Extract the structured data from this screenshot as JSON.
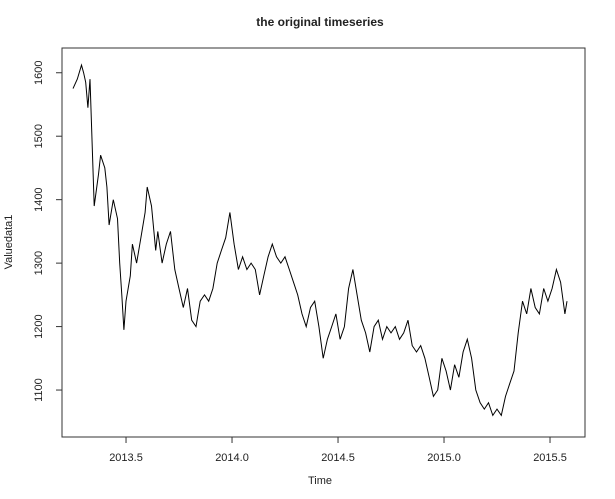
{
  "chart_data": {
    "type": "line",
    "title": "the original timeseries",
    "x_label": "Time",
    "y_label": "Valuedata1",
    "x": [
      2013.25,
      2013.27,
      2013.29,
      2013.3,
      2013.31,
      2013.32,
      2013.33,
      2013.35,
      2013.37,
      2013.38,
      2013.4,
      2013.41,
      2013.42,
      2013.44,
      2013.46,
      2013.47,
      2013.48,
      2013.49,
      2013.5,
      2013.52,
      2013.53,
      2013.55,
      2013.57,
      2013.59,
      2013.6,
      2013.62,
      2013.64,
      2013.65,
      2013.67,
      2013.69,
      2013.71,
      2013.73,
      2013.75,
      2013.77,
      2013.79,
      2013.81,
      2013.83,
      2013.85,
      2013.87,
      2013.89,
      2013.91,
      2013.93,
      2013.95,
      2013.97,
      2013.99,
      2014.01,
      2014.03,
      2014.05,
      2014.07,
      2014.09,
      2014.11,
      2014.13,
      2014.15,
      2014.17,
      2014.19,
      2014.21,
      2014.23,
      2014.25,
      2014.27,
      2014.29,
      2014.31,
      2014.33,
      2014.35,
      2014.37,
      2014.39,
      2014.41,
      2014.43,
      2014.45,
      2014.47,
      2014.49,
      2014.51,
      2014.53,
      2014.55,
      2014.57,
      2014.59,
      2014.61,
      2014.63,
      2014.65,
      2014.67,
      2014.69,
      2014.71,
      2014.73,
      2014.75,
      2014.77,
      2014.79,
      2014.81,
      2014.83,
      2014.85,
      2014.87,
      2014.89,
      2014.91,
      2014.93,
      2014.95,
      2014.97,
      2014.99,
      2015.01,
      2015.03,
      2015.05,
      2015.07,
      2015.09,
      2015.11,
      2015.13,
      2015.15,
      2015.17,
      2015.19,
      2015.21,
      2015.23,
      2015.25,
      2015.27,
      2015.29,
      2015.31,
      2015.33,
      2015.35,
      2015.37,
      2015.39,
      2015.41,
      2015.43,
      2015.45,
      2015.47,
      2015.49,
      2015.51,
      2015.53,
      2015.55,
      2015.57,
      2015.58
    ],
    "series": [
      {
        "name": "Valuedata1",
        "color": "#000000",
        "values": [
          1575,
          1590,
          1612,
          1600,
          1585,
          1545,
          1590,
          1390,
          1440,
          1470,
          1450,
          1420,
          1360,
          1400,
          1370,
          1300,
          1250,
          1195,
          1240,
          1280,
          1330,
          1300,
          1340,
          1380,
          1420,
          1390,
          1320,
          1350,
          1300,
          1330,
          1350,
          1290,
          1260,
          1230,
          1260,
          1210,
          1200,
          1240,
          1250,
          1240,
          1260,
          1300,
          1320,
          1340,
          1380,
          1330,
          1290,
          1310,
          1290,
          1300,
          1290,
          1250,
          1280,
          1310,
          1330,
          1310,
          1300,
          1310,
          1290,
          1270,
          1250,
          1220,
          1200,
          1230,
          1240,
          1200,
          1150,
          1180,
          1200,
          1220,
          1180,
          1200,
          1260,
          1290,
          1250,
          1210,
          1190,
          1160,
          1200,
          1210,
          1180,
          1200,
          1190,
          1200,
          1180,
          1190,
          1210,
          1170,
          1160,
          1170,
          1150,
          1120,
          1090,
          1100,
          1150,
          1130,
          1100,
          1140,
          1120,
          1160,
          1180,
          1150,
          1100,
          1080,
          1070,
          1080,
          1060,
          1070,
          1060,
          1090,
          1110,
          1130,
          1190,
          1240,
          1220,
          1260,
          1230,
          1220,
          1260,
          1240,
          1260,
          1290,
          1270,
          1220,
          1240
        ]
      }
    ],
    "xlim": [
      2013.198,
      2015.665
    ],
    "ylim": [
      1026,
      1639
    ],
    "xticks": [
      2013.5,
      {
        "value": 2014,
        "label": "2014.0"
      },
      2014.5,
      {
        "value": 2015,
        "label": "2015.0"
      },
      2015.5
    ],
    "yticks": [
      1100,
      1200,
      1300,
      1400,
      1500,
      1600
    ]
  }
}
